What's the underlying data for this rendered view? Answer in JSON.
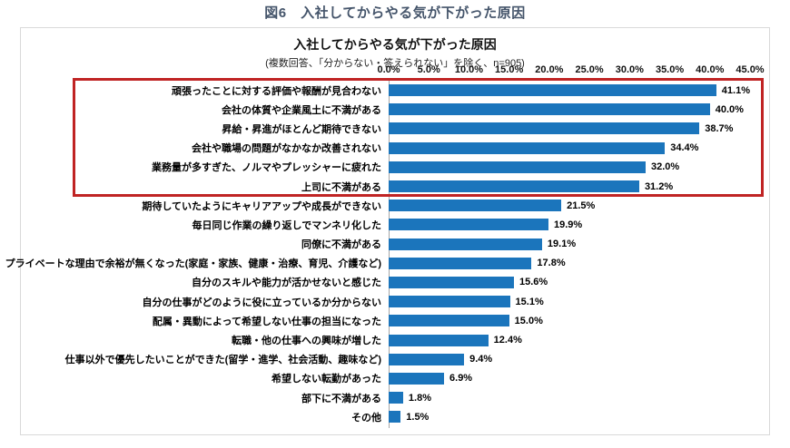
{
  "page": {
    "heading": "図6　入社してからやる気が下がった原因"
  },
  "chart": {
    "title": "入社してからやる気が下がった原因",
    "subtitle": "(複数回答、「分からない・答えられない」を除く、n=905)",
    "colors": {
      "bar": "#1b75bc",
      "highlight_box": "#c02424",
      "frame_border": "#d9d9d9",
      "heading_text": "#44546a",
      "axis_line": "#a6a6a6"
    }
  },
  "chart_data": {
    "type": "bar",
    "orientation": "horizontal",
    "title": "入社してからやる気が下がった原因",
    "subtitle": "(複数回答、「分からない・答えられない」を除く、n=905)",
    "categories": [
      "頑張ったことに対する評価や報酬が見合わない",
      "会社の体質や企業風土に不満がある",
      "昇給・昇進がほとんど期待できない",
      "会社や職場の問題がなかなか改善されない",
      "業務量が多すぎた、ノルマやプレッシャーに疲れた",
      "上司に不満がある",
      "期待していたようにキャリアアップや成長ができない",
      "毎日同じ作業の繰り返しでマンネリ化した",
      "同僚に不満がある",
      "プライベートな理由で余裕が無くなった(家庭・家族、健康・治療、育児、介護など)",
      "自分のスキルや能力が活かせないと感じた",
      "自分の仕事がどのように役に立っているか分からない",
      "配属・異動によって希望しない仕事の担当になった",
      "転職・他の仕事への興味が増した",
      "仕事以外で優先したいことができた(留学・進学、社会活動、趣味など)",
      "希望しない転勤があった",
      "部下に不満がある",
      "その他"
    ],
    "values": [
      41.1,
      40.0,
      38.7,
      34.4,
      32.0,
      31.2,
      21.5,
      19.9,
      19.1,
      17.8,
      15.6,
      15.1,
      15.0,
      12.4,
      9.4,
      6.9,
      1.8,
      1.5
    ],
    "value_labels": [
      "41.1%",
      "40.0%",
      "38.7%",
      "34.4%",
      "32.0%",
      "31.2%",
      "21.5%",
      "19.9%",
      "19.1%",
      "17.8%",
      "15.6%",
      "15.1%",
      "15.0%",
      "12.4%",
      "9.4%",
      "6.9%",
      "1.8%",
      "1.5%"
    ],
    "xlim": [
      0,
      45
    ],
    "x_ticks": [
      "0.0%",
      "5.0%",
      "10.0%",
      "15.0%",
      "20.0%",
      "25.0%",
      "30.0%",
      "35.0%",
      "40.0%",
      "45.0%"
    ],
    "xlabel": "",
    "ylabel": "",
    "grid": false,
    "legend": "none",
    "highlighted_rows": [
      0,
      5
    ]
  }
}
